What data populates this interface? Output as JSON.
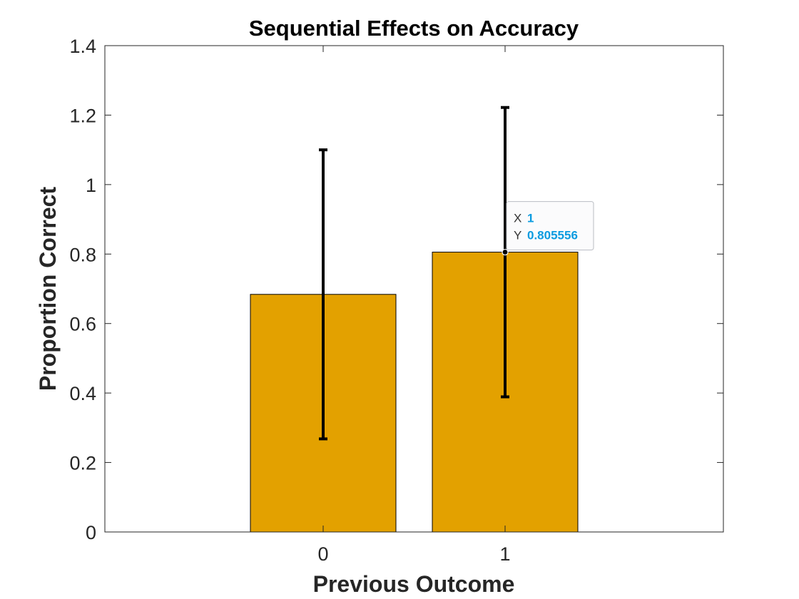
{
  "chart_data": {
    "type": "bar",
    "title": "Sequential Effects on Accuracy",
    "xlabel": "Previous Outcome",
    "ylabel": "Proportion Correct",
    "categories": [
      "0",
      "1"
    ],
    "x": [
      0,
      1
    ],
    "values": [
      0.684,
      0.805556
    ],
    "error_low": [
      0.268,
      0.389
    ],
    "error_high": [
      1.1,
      1.222
    ],
    "xlim": [
      -1.2,
      2.2
    ],
    "ylim": [
      0,
      1.4
    ],
    "yticks": [
      0,
      0.2,
      0.4,
      0.6,
      0.8,
      1,
      1.2,
      1.4
    ],
    "ytick_labels": [
      "0",
      "0.2",
      "0.4",
      "0.6",
      "0.8",
      "1",
      "1.2",
      "1.4"
    ],
    "bar_color": "#e3a100",
    "errorbar_color": "#000000",
    "grid": false,
    "datatip": {
      "x_key": "X",
      "x_value": "1",
      "y_key": "Y",
      "y_value": "0.805556",
      "anchor_x": 1,
      "anchor_y": 0.805556,
      "value_color": "#0a9be0"
    }
  }
}
